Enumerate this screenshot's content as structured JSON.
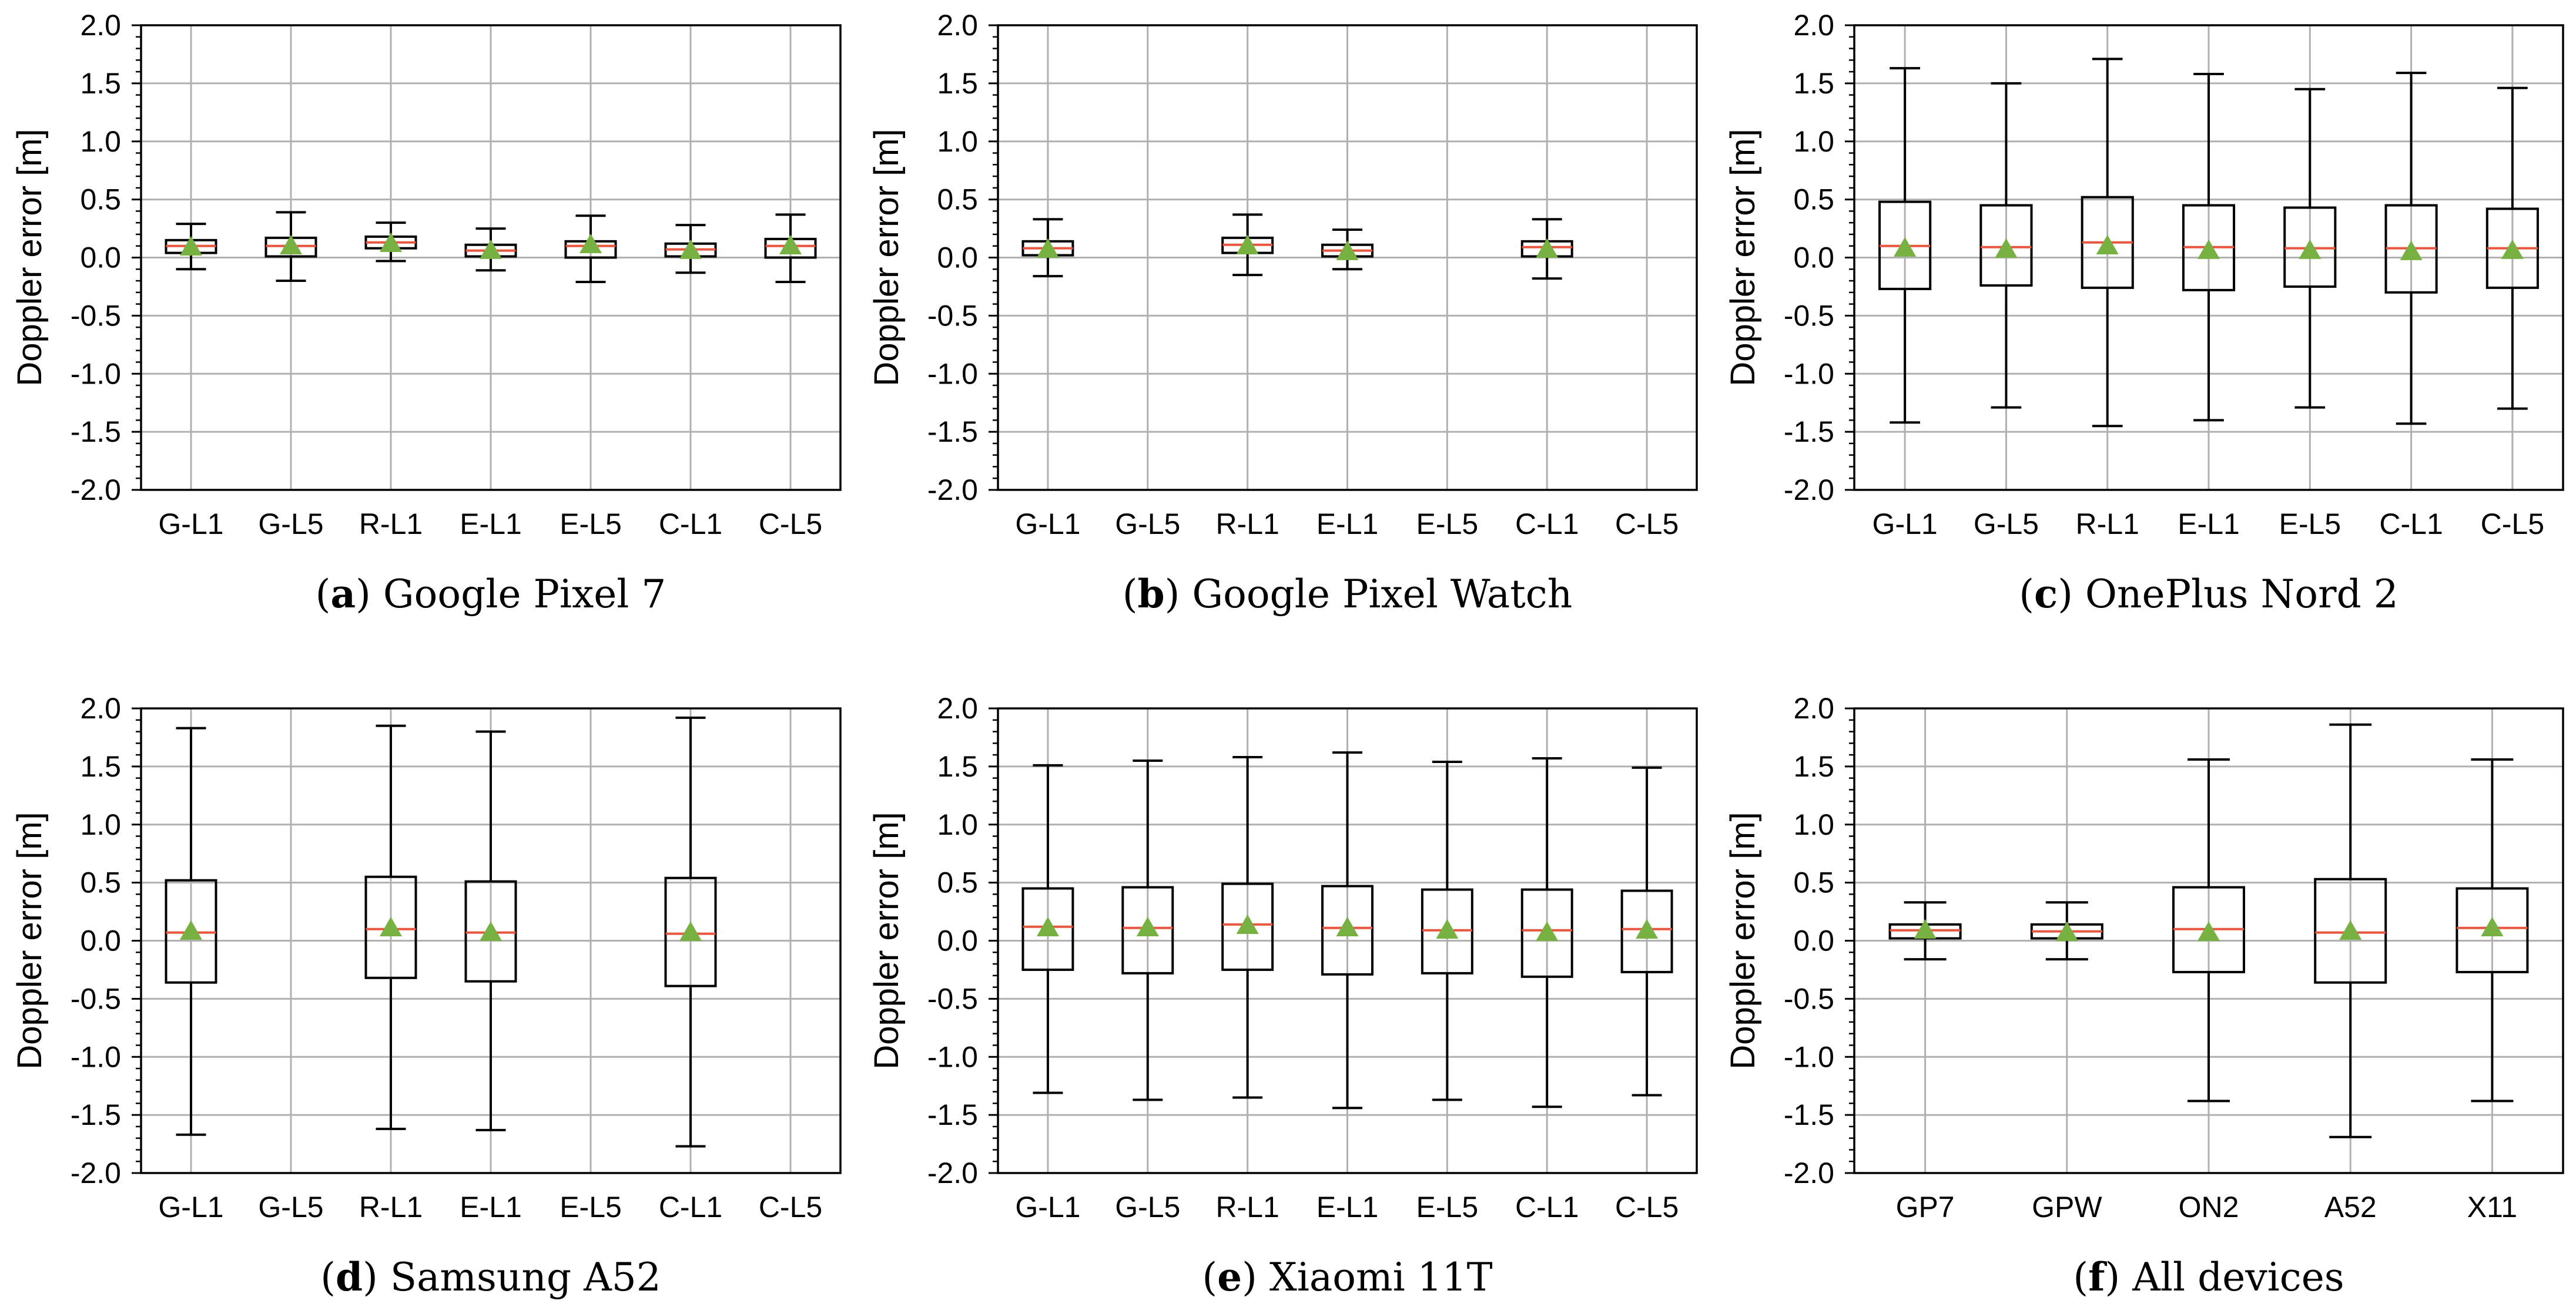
{
  "chart_data": [
    {
      "type": "box",
      "caption_letter": "a",
      "caption_text": "Google Pixel 7",
      "ylabel": "Doppler error [m]",
      "ylim": [
        -2.0,
        2.0
      ],
      "yticks": [
        "-2.0",
        "-1.5",
        "-1.0",
        "-0.5",
        "0.0",
        "0.5",
        "1.0",
        "1.5",
        "2.0"
      ],
      "grid": true,
      "categories": [
        "G-L1",
        "G-L5",
        "R-L1",
        "E-L1",
        "E-L5",
        "C-L1",
        "C-L5"
      ],
      "boxes": [
        {
          "whislo": -0.1,
          "q1": 0.04,
          "med": 0.1,
          "q3": 0.15,
          "whishi": 0.29,
          "mean": 0.09
        },
        {
          "whislo": -0.2,
          "q1": 0.01,
          "med": 0.1,
          "q3": 0.17,
          "whishi": 0.39,
          "mean": 0.1
        },
        {
          "whislo": -0.03,
          "q1": 0.08,
          "med": 0.13,
          "q3": 0.18,
          "whishi": 0.3,
          "mean": 0.12
        },
        {
          "whislo": -0.11,
          "q1": 0.01,
          "med": 0.06,
          "q3": 0.11,
          "whishi": 0.25,
          "mean": 0.06
        },
        {
          "whislo": -0.21,
          "q1": 0.0,
          "med": 0.1,
          "q3": 0.14,
          "whishi": 0.36,
          "mean": 0.11
        },
        {
          "whislo": -0.13,
          "q1": 0.01,
          "med": 0.07,
          "q3": 0.12,
          "whishi": 0.28,
          "mean": 0.06
        },
        {
          "whislo": -0.21,
          "q1": 0.0,
          "med": 0.1,
          "q3": 0.16,
          "whishi": 0.37,
          "mean": 0.1
        }
      ]
    },
    {
      "type": "box",
      "caption_letter": "b",
      "caption_text": "Google Pixel Watch",
      "ylabel": "Doppler error [m]",
      "ylim": [
        -2.0,
        2.0
      ],
      "yticks": [
        "-2.0",
        "-1.5",
        "-1.0",
        "-0.5",
        "0.0",
        "0.5",
        "1.0",
        "1.5",
        "2.0"
      ],
      "grid": true,
      "categories": [
        "G-L1",
        "G-L5",
        "R-L1",
        "E-L1",
        "E-L5",
        "C-L1",
        "C-L5"
      ],
      "boxes": [
        {
          "whislo": -0.16,
          "q1": 0.02,
          "med": 0.08,
          "q3": 0.14,
          "whishi": 0.33,
          "mean": 0.07
        },
        null,
        {
          "whislo": -0.15,
          "q1": 0.04,
          "med": 0.11,
          "q3": 0.17,
          "whishi": 0.37,
          "mean": 0.1
        },
        {
          "whislo": -0.1,
          "q1": 0.01,
          "med": 0.06,
          "q3": 0.11,
          "whishi": 0.24,
          "mean": 0.05
        },
        null,
        {
          "whislo": -0.18,
          "q1": 0.01,
          "med": 0.09,
          "q3": 0.14,
          "whishi": 0.33,
          "mean": 0.07
        },
        null
      ]
    },
    {
      "type": "box",
      "caption_letter": "c",
      "caption_text": "OnePlus Nord 2",
      "ylabel": "Doppler error [m]",
      "ylim": [
        -2.0,
        2.0
      ],
      "yticks": [
        "-2.0",
        "-1.5",
        "-1.0",
        "-0.5",
        "0.0",
        "0.5",
        "1.0",
        "1.5",
        "2.0"
      ],
      "grid": true,
      "categories": [
        "G-L1",
        "G-L5",
        "R-L1",
        "E-L1",
        "E-L5",
        "C-L1",
        "C-L5"
      ],
      "boxes": [
        {
          "whislo": -1.42,
          "q1": -0.27,
          "med": 0.1,
          "q3": 0.48,
          "whishi": 1.63,
          "mean": 0.08
        },
        {
          "whislo": -1.29,
          "q1": -0.24,
          "med": 0.09,
          "q3": 0.45,
          "whishi": 1.5,
          "mean": 0.07
        },
        {
          "whislo": -1.45,
          "q1": -0.26,
          "med": 0.13,
          "q3": 0.52,
          "whishi": 1.71,
          "mean": 0.1
        },
        {
          "whislo": -1.4,
          "q1": -0.28,
          "med": 0.09,
          "q3": 0.45,
          "whishi": 1.58,
          "mean": 0.06
        },
        {
          "whislo": -1.29,
          "q1": -0.25,
          "med": 0.08,
          "q3": 0.43,
          "whishi": 1.45,
          "mean": 0.06
        },
        {
          "whislo": -1.43,
          "q1": -0.3,
          "med": 0.08,
          "q3": 0.45,
          "whishi": 1.59,
          "mean": 0.05
        },
        {
          "whislo": -1.3,
          "q1": -0.26,
          "med": 0.08,
          "q3": 0.42,
          "whishi": 1.46,
          "mean": 0.06
        }
      ]
    },
    {
      "type": "box",
      "caption_letter": "d",
      "caption_text": "Samsung A52",
      "ylabel": "Doppler error [m]",
      "ylim": [
        -2.0,
        2.0
      ],
      "yticks": [
        "-2.0",
        "-1.5",
        "-1.0",
        "-0.5",
        "0.0",
        "0.5",
        "1.0",
        "1.5",
        "2.0"
      ],
      "grid": true,
      "categories": [
        "G-L1",
        "G-L5",
        "R-L1",
        "E-L1",
        "E-L5",
        "C-L1",
        "C-L5"
      ],
      "boxes": [
        {
          "whislo": -1.67,
          "q1": -0.36,
          "med": 0.07,
          "q3": 0.52,
          "whishi": 1.83,
          "mean": 0.08
        },
        null,
        {
          "whislo": -1.62,
          "q1": -0.32,
          "med": 0.1,
          "q3": 0.55,
          "whishi": 1.85,
          "mean": 0.11
        },
        {
          "whislo": -1.63,
          "q1": -0.35,
          "med": 0.07,
          "q3": 0.51,
          "whishi": 1.8,
          "mean": 0.07
        },
        null,
        {
          "whislo": -1.77,
          "q1": -0.39,
          "med": 0.06,
          "q3": 0.54,
          "whishi": 1.92,
          "mean": 0.07
        },
        null
      ]
    },
    {
      "type": "box",
      "caption_letter": "e",
      "caption_text": "Xiaomi 11T",
      "ylabel": "Doppler error [m]",
      "ylim": [
        -2.0,
        2.0
      ],
      "yticks": [
        "-2.0",
        "-1.5",
        "-1.0",
        "-0.5",
        "0.0",
        "0.5",
        "1.0",
        "1.5",
        "2.0"
      ],
      "grid": true,
      "categories": [
        "G-L1",
        "G-L5",
        "R-L1",
        "E-L1",
        "E-L5",
        "C-L1",
        "C-L5"
      ],
      "boxes": [
        {
          "whislo": -1.31,
          "q1": -0.25,
          "med": 0.12,
          "q3": 0.45,
          "whishi": 1.51,
          "mean": 0.11
        },
        {
          "whislo": -1.37,
          "q1": -0.28,
          "med": 0.11,
          "q3": 0.46,
          "whishi": 1.55,
          "mean": 0.11
        },
        {
          "whislo": -1.35,
          "q1": -0.25,
          "med": 0.14,
          "q3": 0.49,
          "whishi": 1.58,
          "mean": 0.13
        },
        {
          "whislo": -1.44,
          "q1": -0.29,
          "med": 0.11,
          "q3": 0.47,
          "whishi": 1.62,
          "mean": 0.11
        },
        {
          "whislo": -1.37,
          "q1": -0.28,
          "med": 0.09,
          "q3": 0.44,
          "whishi": 1.54,
          "mean": 0.09
        },
        {
          "whislo": -1.43,
          "q1": -0.31,
          "med": 0.09,
          "q3": 0.44,
          "whishi": 1.57,
          "mean": 0.07
        },
        {
          "whislo": -1.33,
          "q1": -0.27,
          "med": 0.1,
          "q3": 0.43,
          "whishi": 1.49,
          "mean": 0.09
        }
      ]
    },
    {
      "type": "box",
      "caption_letter": "f",
      "caption_text": "All devices",
      "ylabel": "Doppler error [m]",
      "ylim": [
        -2.0,
        2.0
      ],
      "yticks": [
        "-2.0",
        "-1.5",
        "-1.0",
        "-0.5",
        "0.0",
        "0.5",
        "1.0",
        "1.5",
        "2.0"
      ],
      "grid": true,
      "categories": [
        "GP7",
        "GPW",
        "ON2",
        "A52",
        "X11"
      ],
      "boxes": [
        {
          "whislo": -0.16,
          "q1": 0.02,
          "med": 0.09,
          "q3": 0.14,
          "whishi": 0.33,
          "mean": 0.09
        },
        {
          "whislo": -0.16,
          "q1": 0.02,
          "med": 0.08,
          "q3": 0.14,
          "whishi": 0.33,
          "mean": 0.07
        },
        {
          "whislo": -1.38,
          "q1": -0.27,
          "med": 0.1,
          "q3": 0.46,
          "whishi": 1.56,
          "mean": 0.07
        },
        {
          "whislo": -1.69,
          "q1": -0.36,
          "med": 0.07,
          "q3": 0.53,
          "whishi": 1.86,
          "mean": 0.08
        },
        {
          "whislo": -1.38,
          "q1": -0.27,
          "med": 0.11,
          "q3": 0.45,
          "whishi": 1.56,
          "mean": 0.11
        }
      ]
    }
  ],
  "style": {
    "box_edge_color": "#000000",
    "median_color": "#e8573f",
    "mean_marker_color": "#77b141",
    "grid_color": "#b0b0b0"
  }
}
